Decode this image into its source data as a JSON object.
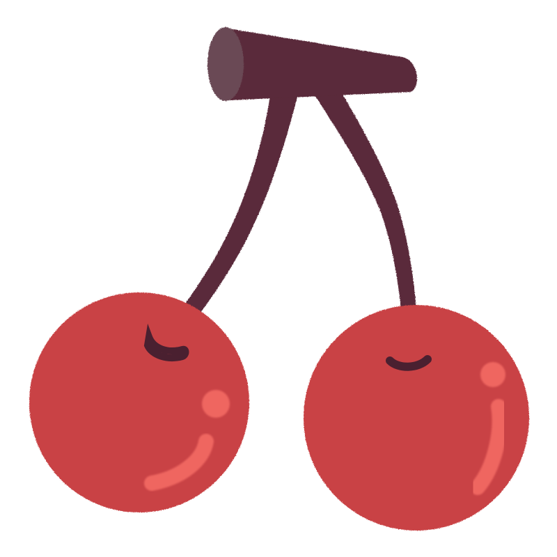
{
  "illustration": {
    "subject": "cherries",
    "colors": {
      "background": "#ffffff",
      "stem": "#5a2a3a",
      "stem_cap": "#6b4a55",
      "cherry_fill": "#c94244",
      "cherry_highlight": "#ef6660",
      "stem_socket": "#4a2030"
    }
  }
}
